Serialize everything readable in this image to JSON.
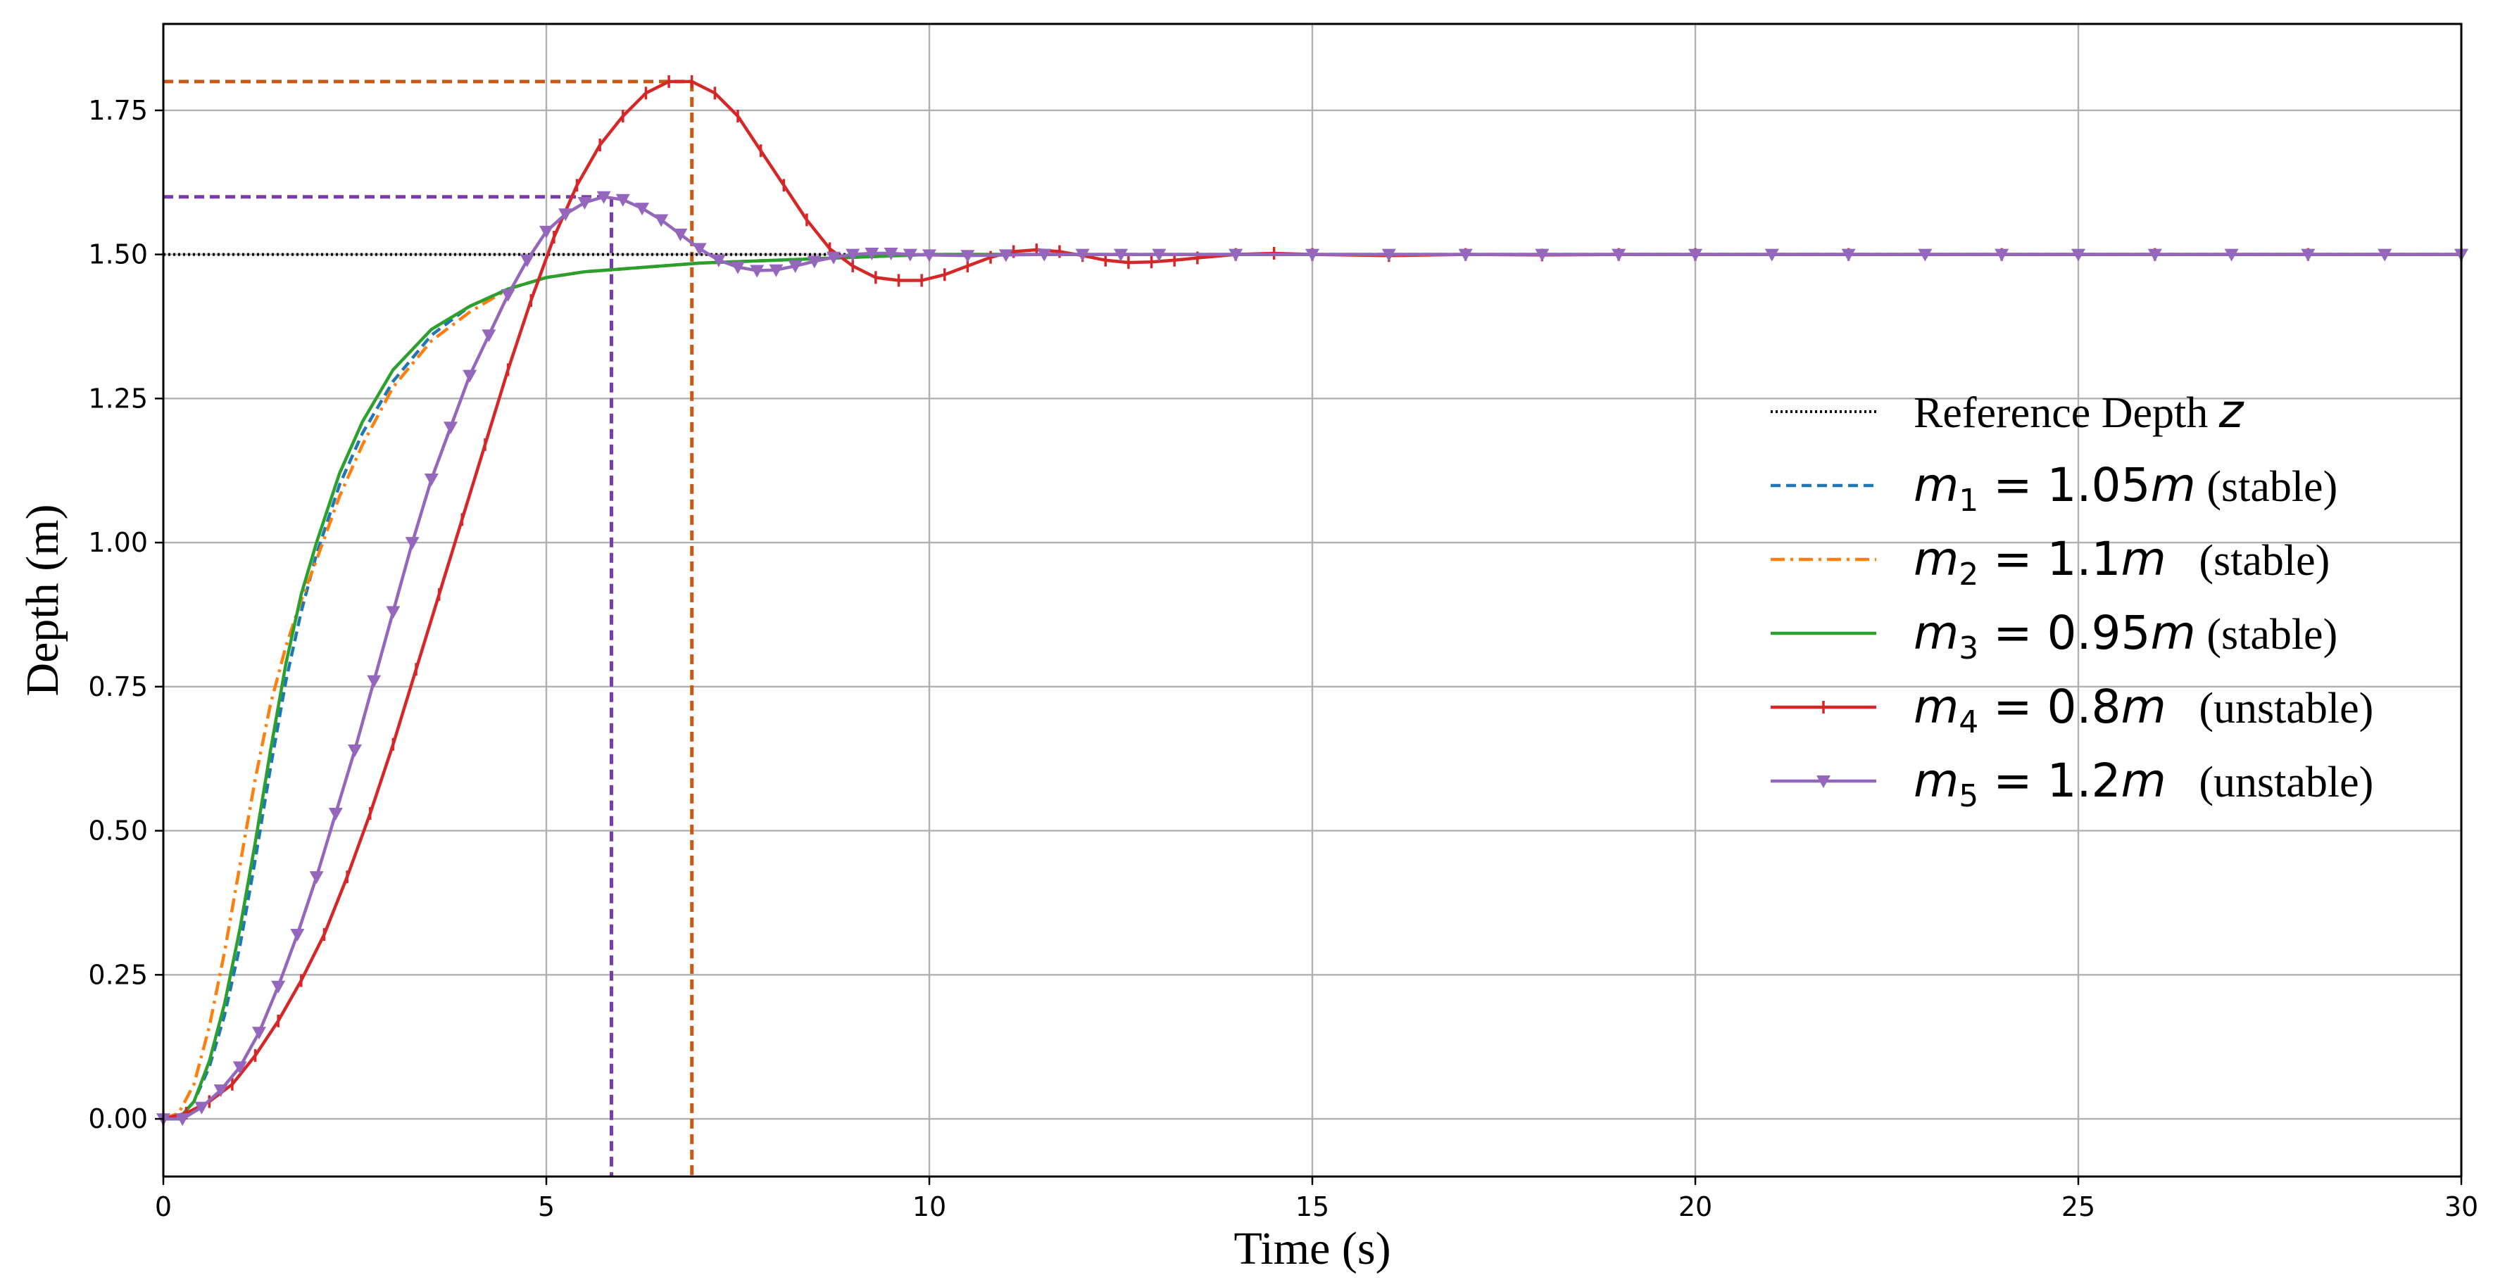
{
  "chart_data": {
    "type": "line",
    "xlabel": "Time (s)",
    "ylabel": "Depth (m)",
    "xlim": [
      0,
      30
    ],
    "ylim": [
      -0.1,
      1.9
    ],
    "xticks": [
      0,
      5,
      10,
      15,
      20,
      25,
      30
    ],
    "yticks": [
      0.0,
      0.25,
      0.5,
      0.75,
      1.0,
      1.25,
      1.5,
      1.75
    ],
    "xtick_labels": [
      "0",
      "5",
      "10",
      "15",
      "20",
      "25",
      "30"
    ],
    "ytick_labels": [
      "0.00",
      "0.25",
      "0.50",
      "0.75",
      "1.00",
      "1.25",
      "1.50",
      "1.75"
    ],
    "grid": true,
    "legend_position": "right",
    "reference": {
      "name_text": "Reference Depth ",
      "name_var": "z",
      "value": 1.5,
      "color": "#000000",
      "style": "dotted"
    },
    "series": [
      {
        "var": "m",
        "sub": "1",
        "expr": " = 1.05",
        "unit": "m",
        "note": " (stable)",
        "color": "#1f77b4",
        "style": "dashed",
        "marker": "none",
        "x": [
          0,
          0.2,
          0.4,
          0.6,
          0.8,
          1.0,
          1.2,
          1.4,
          1.6,
          1.8,
          2.0,
          2.3,
          2.6,
          3.0,
          3.5,
          4.0,
          4.5,
          5.0,
          5.5,
          6.0,
          6.5,
          7.0,
          8.0,
          9.0,
          10.0,
          12.0,
          15.0,
          20.0,
          25.0,
          30.0
        ],
        "y": [
          0.0,
          0.0,
          0.03,
          0.09,
          0.18,
          0.3,
          0.45,
          0.61,
          0.76,
          0.88,
          0.98,
          1.1,
          1.19,
          1.28,
          1.36,
          1.41,
          1.44,
          1.46,
          1.47,
          1.475,
          1.48,
          1.485,
          1.49,
          1.495,
          1.5,
          1.5,
          1.5,
          1.5,
          1.5,
          1.5
        ]
      },
      {
        "var": "m",
        "sub": "2",
        "expr": " = 1.1",
        "unit": "m",
        "note": "   (stable)",
        "color": "#ff7f0e",
        "style": "dashdot",
        "marker": "none",
        "x": [
          0,
          0.2,
          0.4,
          0.6,
          0.8,
          1.0,
          1.2,
          1.4,
          1.6,
          1.8,
          2.0,
          2.3,
          2.6,
          3.0,
          3.5,
          4.0,
          4.5,
          5.0,
          5.5,
          6.0,
          6.5,
          7.0,
          8.0,
          9.0,
          10.0,
          12.0,
          15.0,
          20.0,
          25.0,
          30.0
        ],
        "y": [
          0.0,
          0.01,
          0.06,
          0.16,
          0.29,
          0.44,
          0.59,
          0.72,
          0.82,
          0.9,
          0.97,
          1.08,
          1.17,
          1.27,
          1.35,
          1.4,
          1.44,
          1.46,
          1.47,
          1.475,
          1.48,
          1.485,
          1.49,
          1.495,
          1.5,
          1.5,
          1.5,
          1.5,
          1.5,
          1.5
        ]
      },
      {
        "var": "m",
        "sub": "3",
        "expr": " = 0.95",
        "unit": "m",
        "note": " (stable)",
        "color": "#2ca02c",
        "style": "solid",
        "marker": "none",
        "x": [
          0,
          0.2,
          0.4,
          0.6,
          0.8,
          1.0,
          1.2,
          1.4,
          1.6,
          1.8,
          2.0,
          2.3,
          2.6,
          3.0,
          3.5,
          4.0,
          4.5,
          5.0,
          5.5,
          6.0,
          6.5,
          7.0,
          8.0,
          9.0,
          10.0,
          12.0,
          15.0,
          20.0,
          25.0,
          30.0
        ],
        "y": [
          0.0,
          0.0,
          0.03,
          0.1,
          0.2,
          0.33,
          0.48,
          0.64,
          0.79,
          0.91,
          1.0,
          1.12,
          1.21,
          1.3,
          1.37,
          1.41,
          1.44,
          1.46,
          1.47,
          1.475,
          1.48,
          1.485,
          1.49,
          1.495,
          1.5,
          1.5,
          1.5,
          1.5,
          1.5,
          1.5
        ]
      },
      {
        "var": "m",
        "sub": "4",
        "expr": " = 0.8",
        "unit": "m",
        "note": "   (unstable)",
        "color": "#d62728",
        "style": "solid",
        "marker": "tick",
        "x": [
          0,
          0.3,
          0.6,
          0.9,
          1.2,
          1.5,
          1.8,
          2.1,
          2.4,
          2.7,
          3.0,
          3.3,
          3.6,
          3.9,
          4.2,
          4.5,
          4.8,
          5.1,
          5.4,
          5.7,
          6.0,
          6.3,
          6.6,
          6.9,
          7.2,
          7.5,
          7.8,
          8.1,
          8.4,
          8.7,
          9.0,
          9.3,
          9.6,
          9.9,
          10.2,
          10.5,
          10.8,
          11.1,
          11.4,
          11.7,
          12.0,
          12.3,
          12.6,
          12.9,
          13.2,
          13.5,
          14.0,
          14.5,
          15.0,
          16.0,
          17.0,
          18.0,
          19.0,
          20.0,
          22.0,
          24.0,
          26.0,
          28.0,
          30.0
        ],
        "y": [
          0.0,
          0.01,
          0.03,
          0.06,
          0.11,
          0.17,
          0.24,
          0.32,
          0.42,
          0.53,
          0.65,
          0.78,
          0.91,
          1.04,
          1.17,
          1.3,
          1.42,
          1.53,
          1.62,
          1.69,
          1.74,
          1.78,
          1.8,
          1.8,
          1.78,
          1.74,
          1.68,
          1.62,
          1.56,
          1.51,
          1.48,
          1.46,
          1.455,
          1.455,
          1.465,
          1.48,
          1.495,
          1.505,
          1.508,
          1.505,
          1.498,
          1.49,
          1.486,
          1.487,
          1.49,
          1.494,
          1.5,
          1.502,
          1.5,
          1.498,
          1.5,
          1.499,
          1.5,
          1.5,
          1.5,
          1.5,
          1.5,
          1.5,
          1.5
        ]
      },
      {
        "var": "m",
        "sub": "5",
        "expr": " = 1.2",
        "unit": "m",
        "note": "   (unstable)",
        "color": "#9467bd",
        "style": "solid",
        "marker": "triangle_down",
        "x": [
          0,
          0.25,
          0.5,
          0.75,
          1.0,
          1.25,
          1.5,
          1.75,
          2.0,
          2.25,
          2.5,
          2.75,
          3.0,
          3.25,
          3.5,
          3.75,
          4.0,
          4.25,
          4.5,
          4.75,
          5.0,
          5.25,
          5.5,
          5.75,
          6.0,
          6.25,
          6.5,
          6.75,
          7.0,
          7.25,
          7.5,
          7.75,
          8.0,
          8.25,
          8.5,
          8.75,
          9.0,
          9.25,
          9.5,
          9.75,
          10.0,
          10.5,
          11.0,
          11.5,
          12.0,
          12.5,
          13.0,
          14.0,
          15.0,
          16.0,
          17.0,
          18.0,
          19.0,
          20.0,
          21.0,
          22.0,
          23.0,
          24.0,
          25.0,
          26.0,
          27.0,
          28.0,
          29.0,
          30.0
        ],
        "y": [
          0.0,
          0.0,
          0.02,
          0.05,
          0.09,
          0.15,
          0.23,
          0.32,
          0.42,
          0.53,
          0.64,
          0.76,
          0.88,
          1.0,
          1.11,
          1.2,
          1.29,
          1.36,
          1.43,
          1.49,
          1.54,
          1.57,
          1.59,
          1.6,
          1.595,
          1.58,
          1.56,
          1.535,
          1.51,
          1.49,
          1.478,
          1.472,
          1.473,
          1.48,
          1.488,
          1.495,
          1.5,
          1.502,
          1.502,
          1.5,
          1.499,
          1.498,
          1.499,
          1.5,
          1.5,
          1.5,
          1.5,
          1.5,
          1.5,
          1.5,
          1.5,
          1.5,
          1.5,
          1.5,
          1.5,
          1.5,
          1.5,
          1.5,
          1.5,
          1.5,
          1.5,
          1.5,
          1.5,
          1.5
        ]
      }
    ],
    "annotations": [
      {
        "kind": "peak-guide",
        "x": 6.9,
        "y": 1.8,
        "color": "#c85a17"
      },
      {
        "kind": "peak-guide",
        "x": 5.85,
        "y": 1.6,
        "color": "#7a3ca8"
      }
    ]
  }
}
